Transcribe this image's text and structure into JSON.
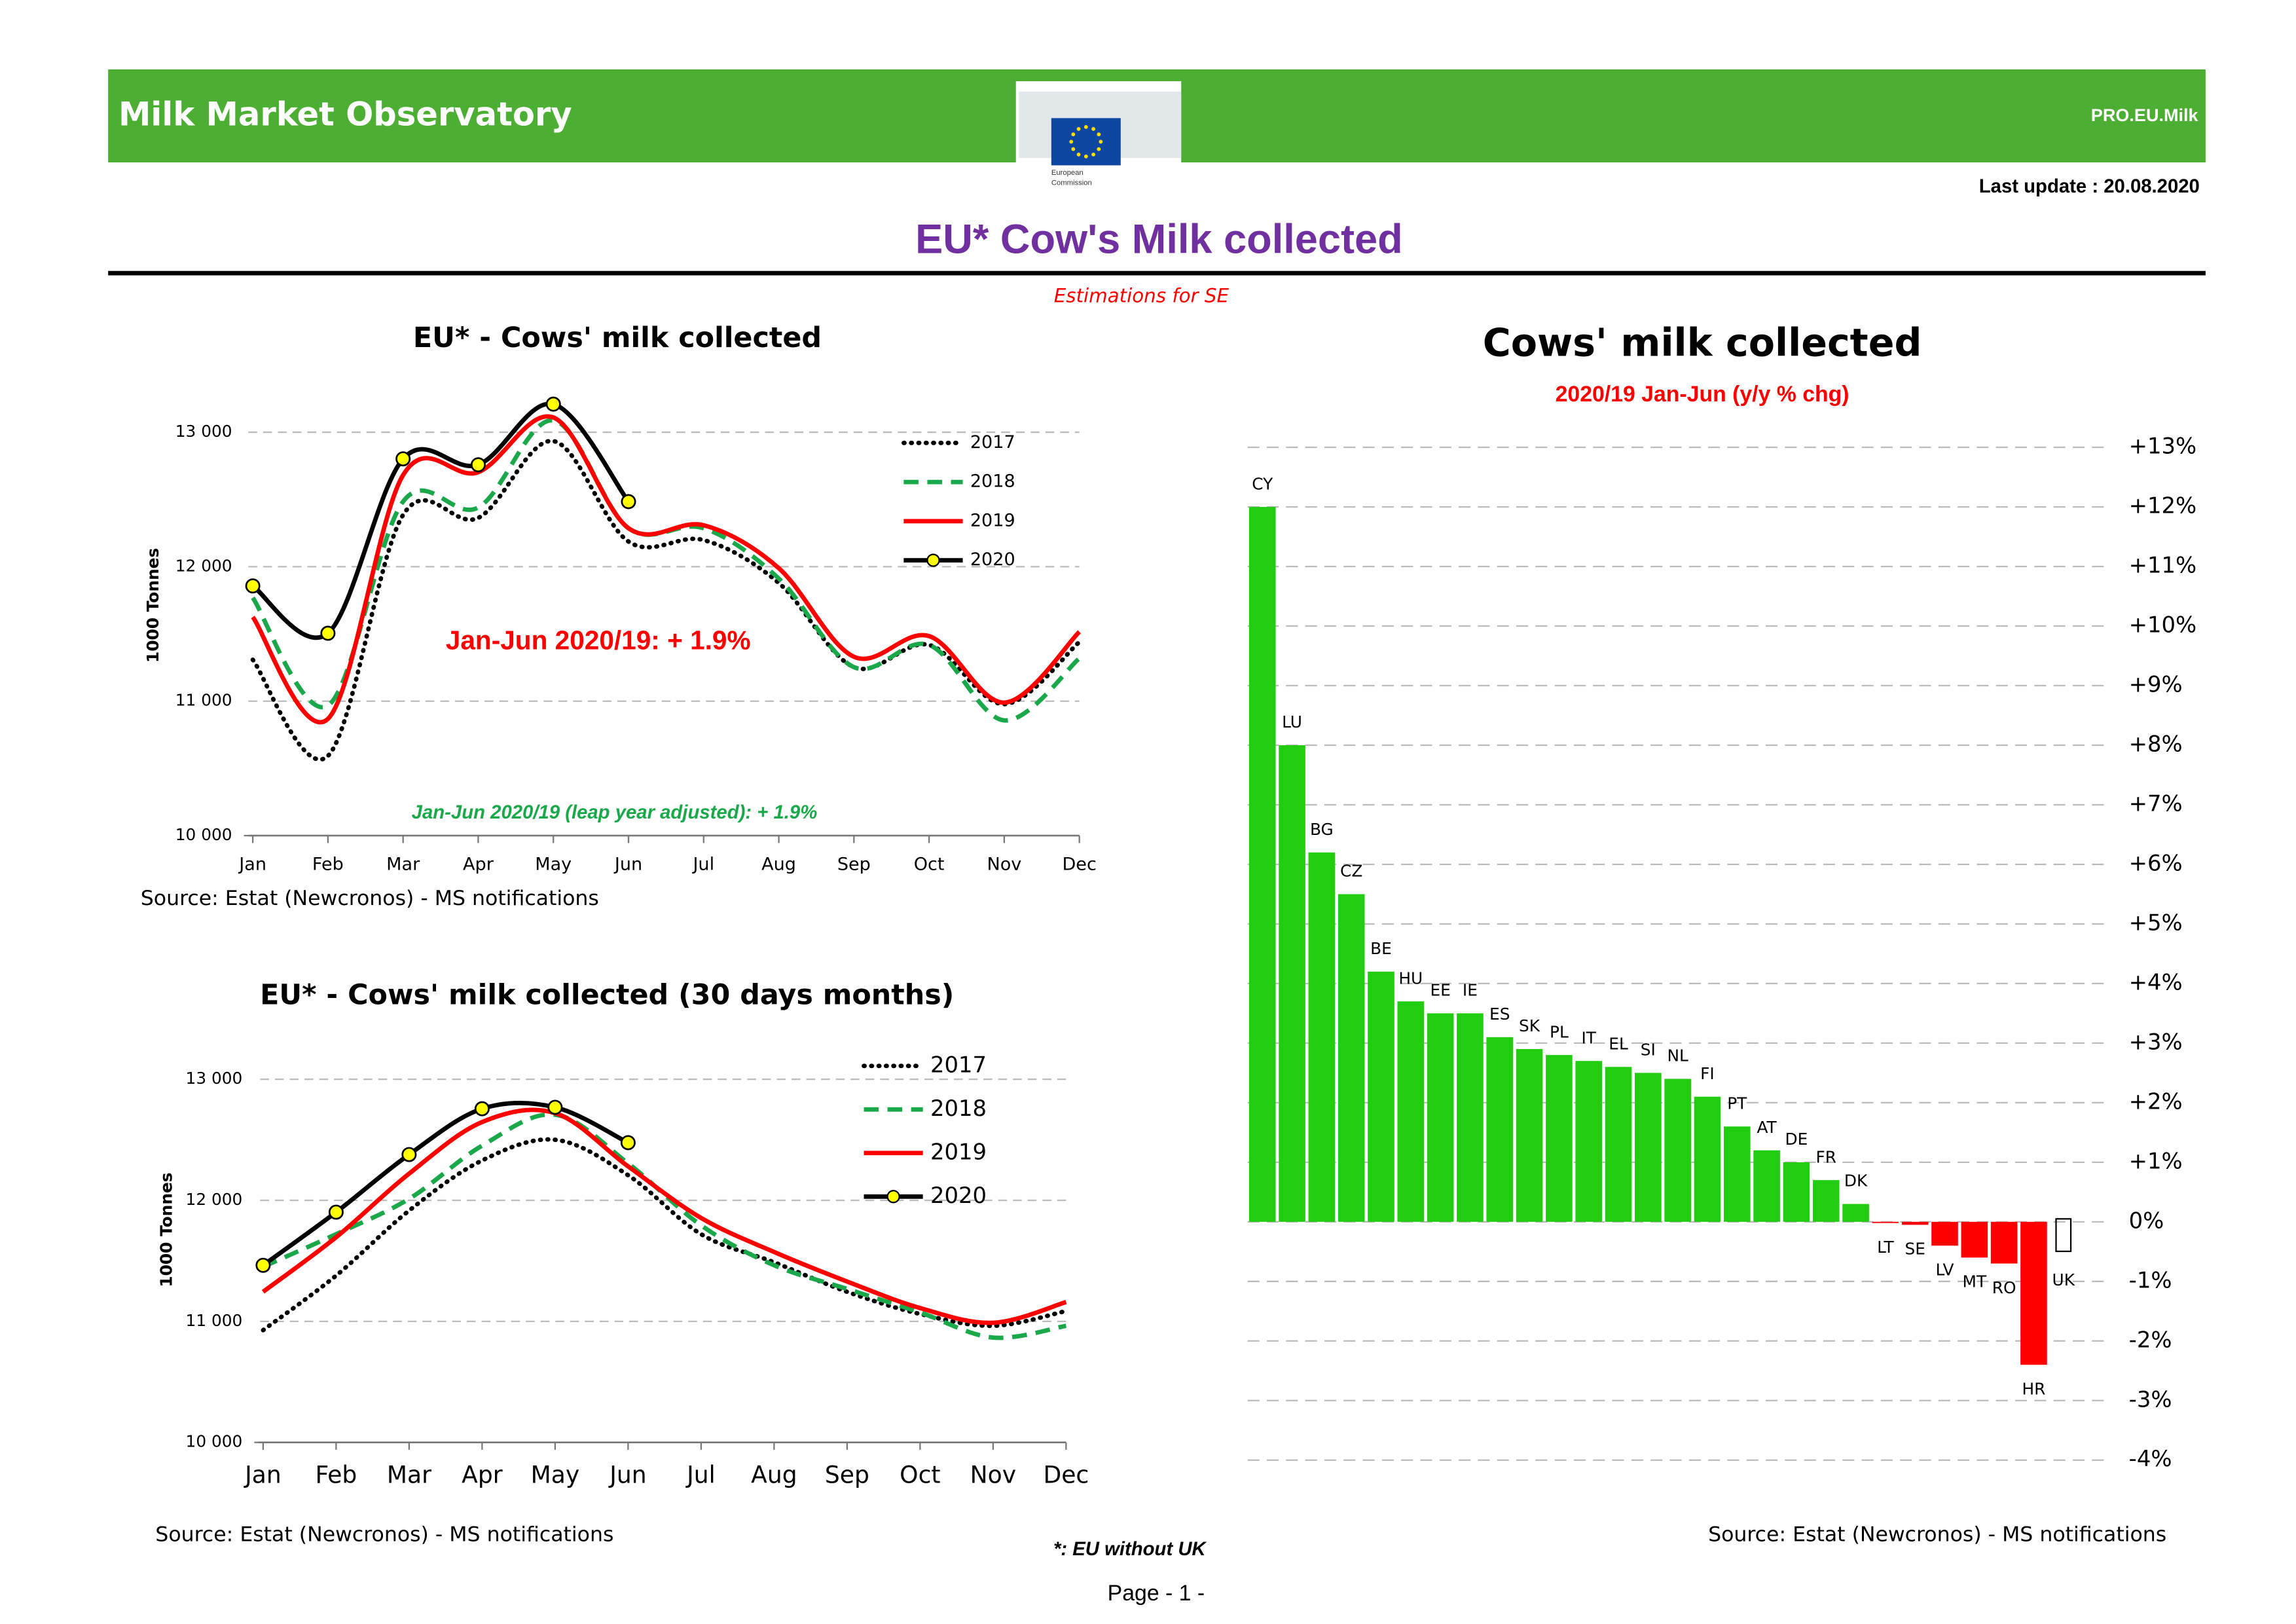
{
  "header": {
    "title": "Milk Market Observatory",
    "code": "PRO.EU.Milk",
    "logo_text": [
      "European",
      "Commission"
    ],
    "last_update": "Last update : 20.08.2020",
    "page_title": "EU* Cow's Milk collected",
    "note": "Estimations for SE"
  },
  "footer": {
    "footnote": "*: EU without UK",
    "page": "Page - 1 -"
  },
  "chart_data": [
    {
      "type": "line",
      "title": "EU* - Cows' milk collected",
      "ylabel": "1000 Tonnes",
      "categories": [
        "Jan",
        "Feb",
        "Mar",
        "Apr",
        "May",
        "Jun",
        "Jul",
        "Aug",
        "Sep",
        "Oct",
        "Nov",
        "Dec"
      ],
      "ylim": [
        10000,
        13250
      ],
      "yticks": [
        {
          "value": 10000,
          "label": "10 000"
        },
        {
          "value": 11000,
          "label": "11 000"
        },
        {
          "value": 12000,
          "label": "12 000"
        },
        {
          "value": 13000,
          "label": "13 000"
        }
      ],
      "grid": true,
      "series": [
        {
          "name": "2017",
          "color": "#000000",
          "style": "dotted",
          "values": [
            11308,
            10593,
            12385,
            12363,
            12934,
            12187,
            12198,
            11879,
            11253,
            11418,
            10978,
            11440
          ]
        },
        {
          "name": "2018",
          "color": "#1aa84b",
          "style": "dashed",
          "values": [
            11769,
            10967,
            12484,
            12440,
            13088,
            12286,
            12286,
            11912,
            11253,
            11418,
            10857,
            11319
          ]
        },
        {
          "name": "2019",
          "color": "#ff0000",
          "style": "solid",
          "values": [
            11626,
            10868,
            12681,
            12703,
            13110,
            12286,
            12308,
            11989,
            11330,
            11484,
            10989,
            11516
          ]
        },
        {
          "name": "2020",
          "color": "#000000",
          "style": "solid",
          "marker": "#ffff00",
          "values": [
            11857,
            11505,
            12802,
            12758,
            13209,
            12484,
            null,
            null,
            null,
            null,
            null,
            null
          ]
        }
      ],
      "annotations": [
        "Jan-Jun 2020/19: + 1.9%",
        "Jan-Jun 2020/19 (leap year adjusted): + 1.9%"
      ],
      "source": "Source: Estat (Newcronos) - MS notifications"
    },
    {
      "type": "line",
      "title": "EU* - Cows' milk collected (30 days months)",
      "ylabel": "1000 Tonnes",
      "categories": [
        "Jan",
        "Feb",
        "Mar",
        "Apr",
        "May",
        "Jun",
        "Jul",
        "Aug",
        "Sep",
        "Oct",
        "Nov",
        "Dec"
      ],
      "ylim": [
        10000,
        13250
      ],
      "yticks": [
        {
          "value": 10000,
          "label": "10 000"
        },
        {
          "value": 11000,
          "label": "11 000"
        },
        {
          "value": 12000,
          "label": "12 000"
        },
        {
          "value": 13000,
          "label": "13 000"
        }
      ],
      "grid": true,
      "series": [
        {
          "name": "2017",
          "color": "#000000",
          "style": "dotted",
          "values": [
            10927,
            11378,
            11915,
            12329,
            12500,
            12207,
            11720,
            11488,
            11244,
            11061,
            10963,
            11085
          ]
        },
        {
          "name": "2018",
          "color": "#1aa84b",
          "style": "dashed",
          "values": [
            11451,
            11720,
            12012,
            12451,
            12707,
            12305,
            11793,
            11463,
            11268,
            11073,
            10866,
            10963
          ]
        },
        {
          "name": "2019",
          "color": "#ff0000",
          "style": "solid",
          "values": [
            11244,
            11695,
            12220,
            12646,
            12720,
            12280,
            11854,
            11573,
            11329,
            11110,
            10988,
            11159
          ]
        },
        {
          "name": "2020",
          "color": "#000000",
          "style": "solid",
          "marker": "#ffff00",
          "values": [
            11463,
            11902,
            12378,
            12756,
            12768,
            12476,
            null,
            null,
            null,
            null,
            null,
            null
          ]
        }
      ],
      "source": "Source: Estat (Newcronos) - MS notifications"
    },
    {
      "type": "bar",
      "title": "Cows' milk collected",
      "subtitle": "2020/19  Jan-Jun  (y/y % chg)",
      "categories": [
        "CY",
        "LU",
        "BG",
        "CZ",
        "BE",
        "HU",
        "EE",
        "IE",
        "ES",
        "SK",
        "PL",
        "IT",
        "EL",
        "SI",
        "NL",
        "FI",
        "PT",
        "AT",
        "DE",
        "FR",
        "DK",
        "LT",
        "SE",
        "LV",
        "MT",
        "RO",
        "HR",
        "UK"
      ],
      "values": [
        12.0,
        8.0,
        6.2,
        5.5,
        4.2,
        3.7,
        3.5,
        3.5,
        3.1,
        2.9,
        2.8,
        2.7,
        2.6,
        2.5,
        2.4,
        2.1,
        1.6,
        1.2,
        1.0,
        0.7,
        0.3,
        -0.02,
        -0.05,
        -0.4,
        -0.6,
        -0.7,
        -2.4,
        null
      ],
      "color": "#22cc11",
      "negative_color": "#ff0000",
      "ylim": [
        -4,
        13
      ],
      "y_axis_side": "right",
      "yticks": [
        {
          "value": 13,
          "label": "+13%"
        },
        {
          "value": 12,
          "label": "+12%"
        },
        {
          "value": 11,
          "label": "+11%"
        },
        {
          "value": 10,
          "label": "+10%"
        },
        {
          "value": 9,
          "label": "+9%"
        },
        {
          "value": 8,
          "label": "+8%"
        },
        {
          "value": 7,
          "label": "+7%"
        },
        {
          "value": 6,
          "label": "+6%"
        },
        {
          "value": 5,
          "label": "+5%"
        },
        {
          "value": 4,
          "label": "+4%"
        },
        {
          "value": 3,
          "label": "+3%"
        },
        {
          "value": 2,
          "label": "+2%"
        },
        {
          "value": 1,
          "label": "+1%"
        },
        {
          "value": 0,
          "label": "0%"
        },
        {
          "value": -1,
          "label": "-1%"
        },
        {
          "value": -2,
          "label": "-2%"
        },
        {
          "value": -3,
          "label": "-3%"
        },
        {
          "value": -4,
          "label": "-4%"
        }
      ],
      "grid": true,
      "source": "Source: Estat (Newcronos) - MS notifications"
    }
  ]
}
